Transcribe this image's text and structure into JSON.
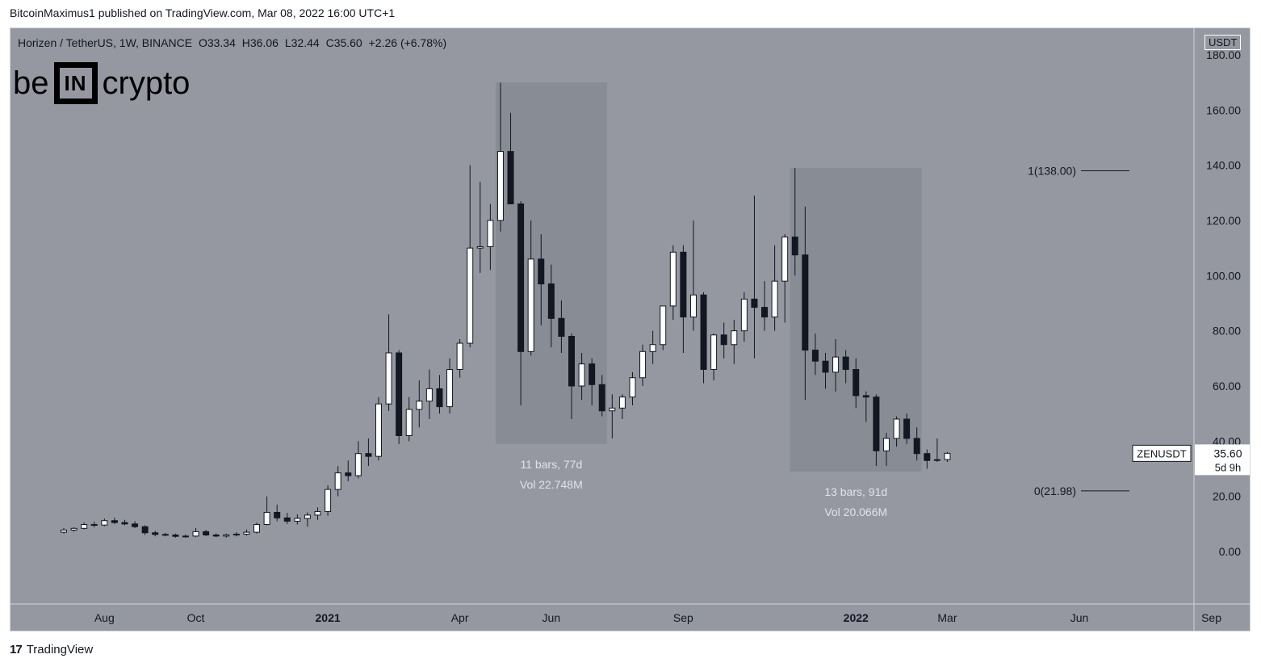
{
  "publisher_line": "BitcoinMaximus1 published on TradingView.com, Mar 08, 2022 16:00 UTC+1",
  "legend": {
    "symbol": "Horizen / TetherUS, 1W, BINANCE",
    "o_label": "O",
    "o": "33.34",
    "h_label": "H",
    "h": "36.06",
    "l_label": "L",
    "l": "32.44",
    "c_label": "C",
    "c": "35.60",
    "change": "+2.26 (+6.78%)"
  },
  "brand": {
    "left": "be",
    "mid": "IN",
    "right": "crypto"
  },
  "currency": "USDT",
  "price_tag": {
    "ticker": "ZENUSDT",
    "price": "35.60",
    "countdown": "5d 9h"
  },
  "footer": {
    "logo": "17",
    "text": "TradingView"
  },
  "colors": {
    "background": "#9598a1",
    "up": "#ffffff",
    "down": "#131722",
    "range_box": "#868993"
  },
  "chart_data": {
    "type": "candlestick",
    "title": "Horizen / TetherUS, 1W, BINANCE",
    "ylabel": "USDT",
    "ylim": [
      -18,
      185
    ],
    "y_ticks": [
      "180.00",
      "160.00",
      "140.00",
      "120.00",
      "100.00",
      "80.00",
      "60.00",
      "40.00",
      "20.00",
      "0.00"
    ],
    "y_tick_values": [
      180,
      160,
      140,
      120,
      100,
      80,
      60,
      40,
      20,
      0
    ],
    "x_ticks": [
      {
        "label": "Aug",
        "bar": 4,
        "bold": false
      },
      {
        "label": "Oct",
        "bar": 13,
        "bold": false
      },
      {
        "label": "2021",
        "bar": 26,
        "bold": true
      },
      {
        "label": "Apr",
        "bar": 39,
        "bold": false
      },
      {
        "label": "Jun",
        "bar": 48,
        "bold": false
      },
      {
        "label": "Sep",
        "bar": 61,
        "bold": false
      },
      {
        "label": "2022",
        "bar": 78,
        "bold": true
      },
      {
        "label": "Mar",
        "bar": 87,
        "bold": false
      },
      {
        "label": "Jun",
        "bar": 100,
        "bold": false
      },
      {
        "label": "Sep",
        "bar": 113,
        "bold": false
      }
    ],
    "candles": [
      {
        "o": 7.0,
        "h": 8.5,
        "l": 6.5,
        "c": 7.8
      },
      {
        "o": 7.8,
        "h": 8.8,
        "l": 7.2,
        "c": 8.4
      },
      {
        "o": 8.4,
        "h": 10.5,
        "l": 8.0,
        "c": 9.8
      },
      {
        "o": 9.8,
        "h": 10.8,
        "l": 8.8,
        "c": 9.6
      },
      {
        "o": 9.6,
        "h": 12.0,
        "l": 9.2,
        "c": 11.2
      },
      {
        "o": 11.2,
        "h": 12.3,
        "l": 10.0,
        "c": 10.5
      },
      {
        "o": 10.5,
        "h": 11.5,
        "l": 9.5,
        "c": 10.0
      },
      {
        "o": 10.0,
        "h": 11.0,
        "l": 8.5,
        "c": 9.0
      },
      {
        "o": 9.0,
        "h": 9.5,
        "l": 6.0,
        "c": 6.8
      },
      {
        "o": 6.8,
        "h": 7.5,
        "l": 5.5,
        "c": 6.2
      },
      {
        "o": 6.2,
        "h": 6.8,
        "l": 5.5,
        "c": 6.0
      },
      {
        "o": 6.0,
        "h": 6.5,
        "l": 5.0,
        "c": 5.5
      },
      {
        "o": 5.5,
        "h": 6.2,
        "l": 5.0,
        "c": 5.6
      },
      {
        "o": 5.6,
        "h": 8.5,
        "l": 5.2,
        "c": 7.2
      },
      {
        "o": 7.2,
        "h": 7.8,
        "l": 5.6,
        "c": 6.0
      },
      {
        "o": 6.0,
        "h": 6.6,
        "l": 5.2,
        "c": 5.6
      },
      {
        "o": 5.6,
        "h": 6.5,
        "l": 5.0,
        "c": 6.0
      },
      {
        "o": 6.0,
        "h": 7.0,
        "l": 5.5,
        "c": 6.3
      },
      {
        "o": 6.3,
        "h": 8.0,
        "l": 5.8,
        "c": 7.0
      },
      {
        "o": 7.0,
        "h": 10.5,
        "l": 6.5,
        "c": 9.8
      },
      {
        "o": 9.8,
        "h": 20.0,
        "l": 9.5,
        "c": 14.2
      },
      {
        "o": 14.2,
        "h": 17.0,
        "l": 11.0,
        "c": 12.2
      },
      {
        "o": 12.2,
        "h": 14.0,
        "l": 10.0,
        "c": 11.0
      },
      {
        "o": 11.0,
        "h": 13.5,
        "l": 9.8,
        "c": 12.0
      },
      {
        "o": 12.0,
        "h": 14.2,
        "l": 9.0,
        "c": 13.2
      },
      {
        "o": 13.2,
        "h": 16.0,
        "l": 11.5,
        "c": 14.5
      },
      {
        "o": 14.5,
        "h": 24.0,
        "l": 13.0,
        "c": 22.5
      },
      {
        "o": 22.5,
        "h": 31.0,
        "l": 20.0,
        "c": 28.5
      },
      {
        "o": 28.5,
        "h": 33.0,
        "l": 25.5,
        "c": 27.5
      },
      {
        "o": 27.5,
        "h": 40.0,
        "l": 26.5,
        "c": 35.5
      },
      {
        "o": 35.5,
        "h": 41.0,
        "l": 31.0,
        "c": 34.5
      },
      {
        "o": 34.5,
        "h": 56.0,
        "l": 33.0,
        "c": 53.5
      },
      {
        "o": 53.5,
        "h": 86.0,
        "l": 51.0,
        "c": 72.0
      },
      {
        "o": 72.0,
        "h": 73.0,
        "l": 39.0,
        "c": 42.0
      },
      {
        "o": 42.0,
        "h": 56.0,
        "l": 40.0,
        "c": 51.5
      },
      {
        "o": 51.5,
        "h": 62.0,
        "l": 45.0,
        "c": 54.5
      },
      {
        "o": 54.5,
        "h": 66.0,
        "l": 48.0,
        "c": 59.0
      },
      {
        "o": 59.0,
        "h": 64.0,
        "l": 50.0,
        "c": 52.5
      },
      {
        "o": 52.5,
        "h": 70.0,
        "l": 50.0,
        "c": 66.0
      },
      {
        "o": 66.0,
        "h": 77.0,
        "l": 63.0,
        "c": 75.5
      },
      {
        "o": 75.5,
        "h": 140.0,
        "l": 74.0,
        "c": 110.0
      },
      {
        "o": 110.0,
        "h": 134.0,
        "l": 101.0,
        "c": 110.5
      },
      {
        "o": 110.5,
        "h": 126.0,
        "l": 102.0,
        "c": 120.0
      },
      {
        "o": 120.0,
        "h": 170.0,
        "l": 116.0,
        "c": 145.0
      },
      {
        "o": 145.0,
        "h": 159.0,
        "l": 126.0,
        "c": 126.0
      },
      {
        "o": 126.0,
        "h": 127.0,
        "l": 53.0,
        "c": 72.5
      },
      {
        "o": 72.5,
        "h": 120.0,
        "l": 71.0,
        "c": 106.0
      },
      {
        "o": 106.0,
        "h": 115.0,
        "l": 82.0,
        "c": 97.0
      },
      {
        "o": 97.0,
        "h": 104.0,
        "l": 74.0,
        "c": 84.5
      },
      {
        "o": 84.5,
        "h": 91.0,
        "l": 72.0,
        "c": 78.0
      },
      {
        "o": 78.0,
        "h": 79.0,
        "l": 48.0,
        "c": 60.0
      },
      {
        "o": 60.0,
        "h": 72.0,
        "l": 55.0,
        "c": 68.0
      },
      {
        "o": 68.0,
        "h": 70.0,
        "l": 53.0,
        "c": 60.5
      },
      {
        "o": 60.5,
        "h": 64.0,
        "l": 49.0,
        "c": 51.0
      },
      {
        "o": 51.0,
        "h": 57.0,
        "l": 41.0,
        "c": 52.0
      },
      {
        "o": 52.0,
        "h": 57.0,
        "l": 48.0,
        "c": 56.0
      },
      {
        "o": 56.0,
        "h": 65.0,
        "l": 53.0,
        "c": 63.0
      },
      {
        "o": 63.0,
        "h": 75.0,
        "l": 60.0,
        "c": 72.5
      },
      {
        "o": 72.5,
        "h": 80.0,
        "l": 68.0,
        "c": 75.0
      },
      {
        "o": 75.0,
        "h": 88.0,
        "l": 73.0,
        "c": 89.0
      },
      {
        "o": 89.0,
        "h": 111.0,
        "l": 84.0,
        "c": 108.5
      },
      {
        "o": 108.5,
        "h": 111.0,
        "l": 72.0,
        "c": 85.0
      },
      {
        "o": 85.0,
        "h": 120.0,
        "l": 80.0,
        "c": 93.0
      },
      {
        "o": 93.0,
        "h": 94.0,
        "l": 61.0,
        "c": 66.0
      },
      {
        "o": 66.0,
        "h": 79.0,
        "l": 62.0,
        "c": 78.5
      },
      {
        "o": 78.5,
        "h": 83.0,
        "l": 70.0,
        "c": 75.0
      },
      {
        "o": 75.0,
        "h": 84.0,
        "l": 68.0,
        "c": 80.0
      },
      {
        "o": 80.0,
        "h": 94.0,
        "l": 76.0,
        "c": 91.5
      },
      {
        "o": 91.5,
        "h": 129.0,
        "l": 70.0,
        "c": 88.5
      },
      {
        "o": 88.5,
        "h": 98.0,
        "l": 80.0,
        "c": 85.0
      },
      {
        "o": 85.0,
        "h": 111.0,
        "l": 80.0,
        "c": 98.0
      },
      {
        "o": 98.0,
        "h": 115.0,
        "l": 83.0,
        "c": 114.0
      },
      {
        "o": 114.0,
        "h": 139.0,
        "l": 100.0,
        "c": 107.5
      },
      {
        "o": 107.5,
        "h": 125.0,
        "l": 55.0,
        "c": 73.0
      },
      {
        "o": 73.0,
        "h": 79.0,
        "l": 64.0,
        "c": 69.0
      },
      {
        "o": 69.0,
        "h": 72.0,
        "l": 59.0,
        "c": 65.0
      },
      {
        "o": 65.0,
        "h": 77.0,
        "l": 58.0,
        "c": 70.5
      },
      {
        "o": 70.5,
        "h": 73.0,
        "l": 61.0,
        "c": 66.0
      },
      {
        "o": 66.0,
        "h": 70.0,
        "l": 52.0,
        "c": 56.5
      },
      {
        "o": 56.5,
        "h": 58.0,
        "l": 47.0,
        "c": 56.0
      },
      {
        "o": 56.0,
        "h": 57.0,
        "l": 31.0,
        "c": 36.5
      },
      {
        "o": 36.5,
        "h": 43.0,
        "l": 31.0,
        "c": 41.0
      },
      {
        "o": 41.0,
        "h": 49.0,
        "l": 38.0,
        "c": 48.0
      },
      {
        "o": 48.0,
        "h": 50.0,
        "l": 39.0,
        "c": 41.0
      },
      {
        "o": 41.0,
        "h": 45.0,
        "l": 33.0,
        "c": 35.5
      },
      {
        "o": 35.5,
        "h": 37.0,
        "l": 30.0,
        "c": 33.0
      },
      {
        "o": 33.0,
        "h": 41.0,
        "l": 32.5,
        "c": 33.3
      },
      {
        "o": 33.34,
        "h": 36.06,
        "l": 32.44,
        "c": 35.6
      }
    ],
    "range_boxes": [
      {
        "start_bar": 43,
        "end_bar": 53,
        "top": 170,
        "bottom": 39,
        "bars_text": "11 bars, 77d",
        "vol_text": "Vol 22.748M"
      },
      {
        "start_bar": 72,
        "end_bar": 84,
        "top": 139,
        "bottom": 29,
        "bars_text": "13 bars, 91d",
        "vol_text": "Vol 20.066M"
      }
    ],
    "fib_levels": [
      {
        "label": "1(138.00)",
        "value": 138.0
      },
      {
        "label": "0(21.98)",
        "value": 21.98
      }
    ]
  }
}
